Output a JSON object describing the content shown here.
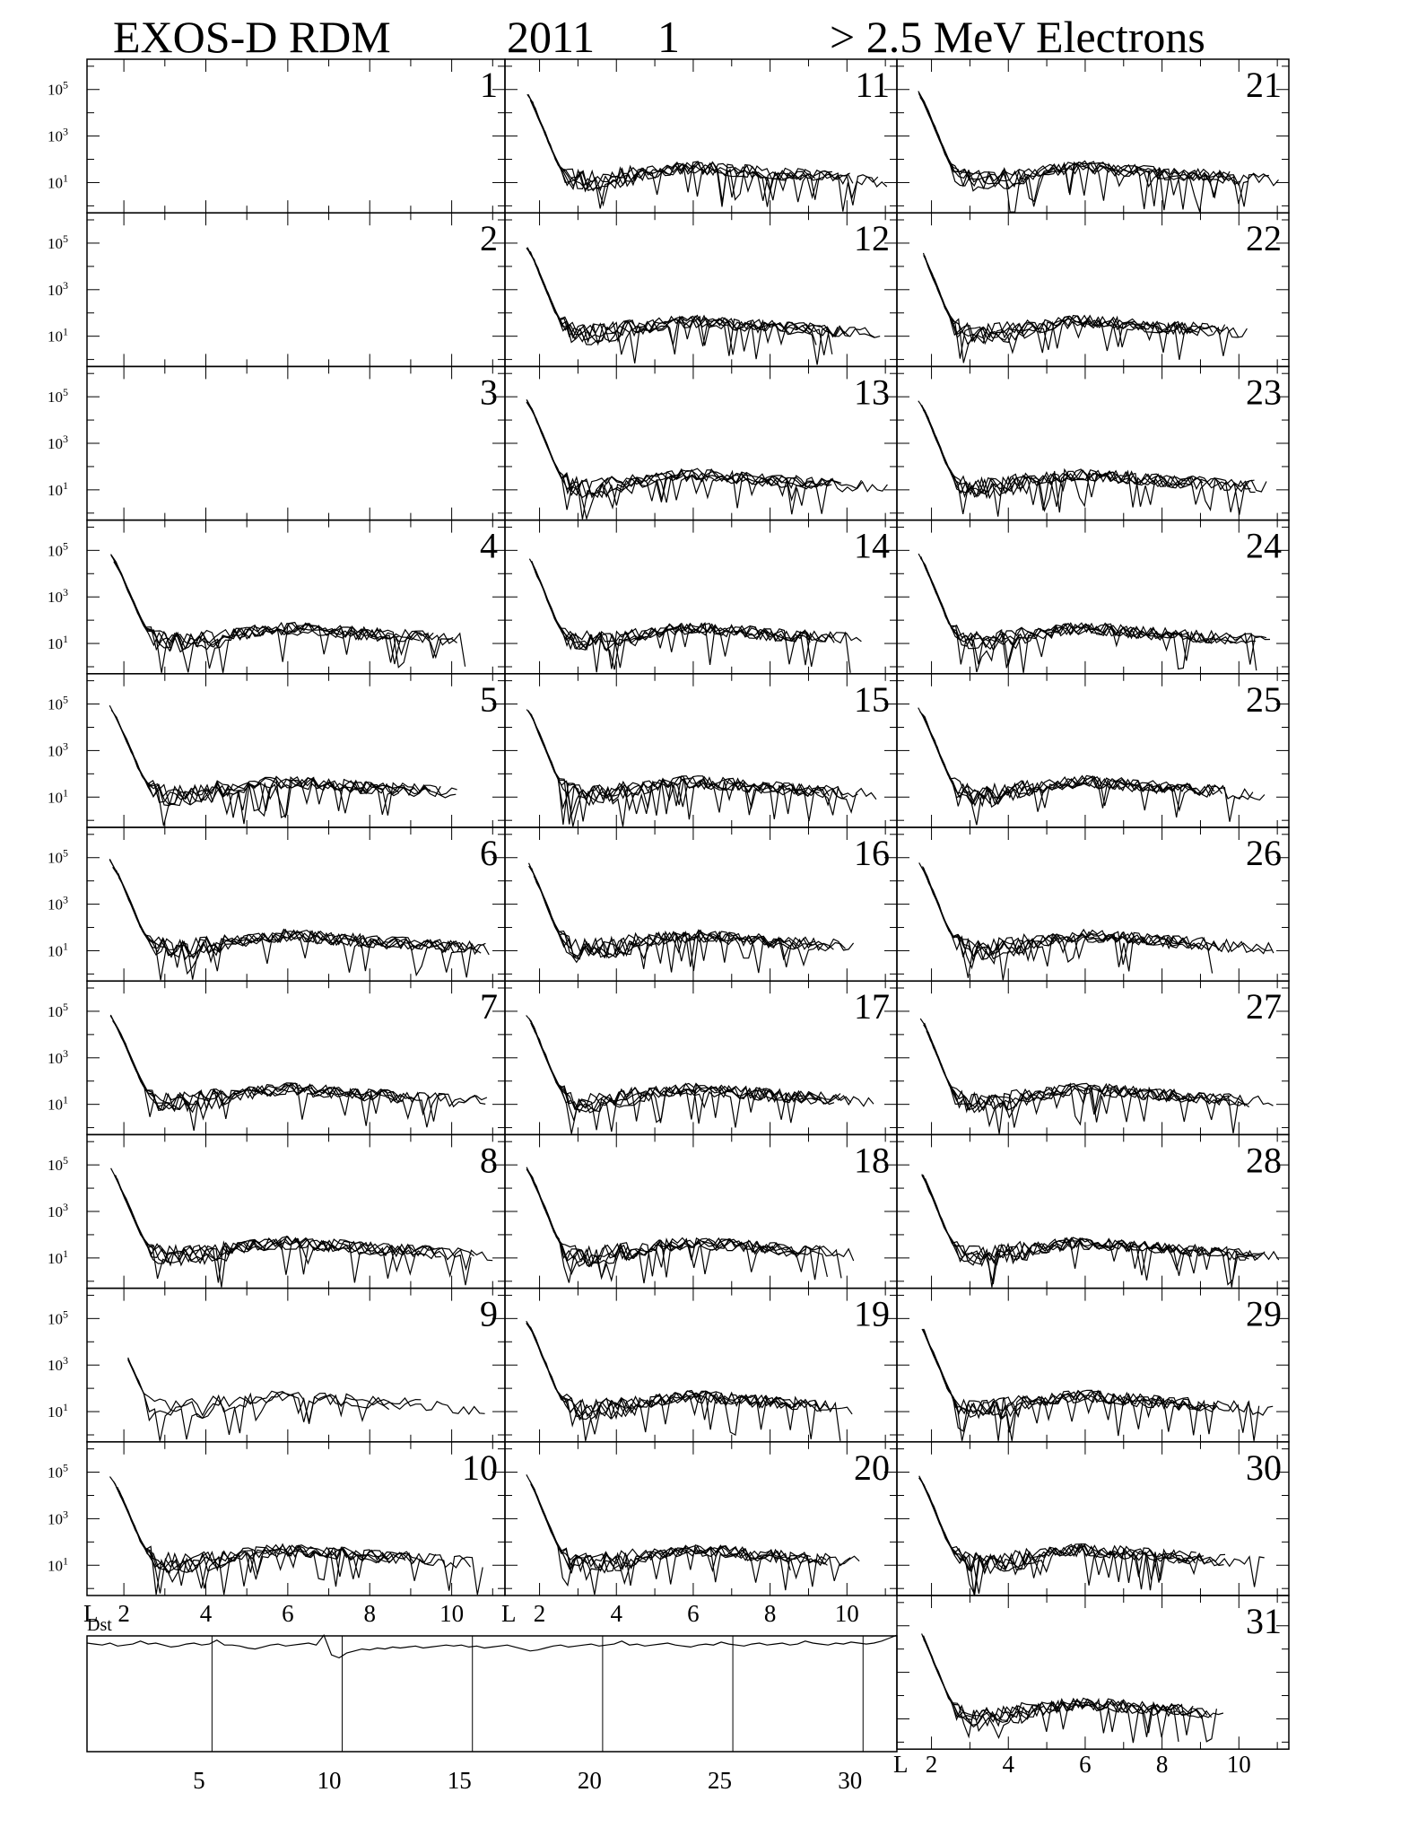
{
  "header": {
    "instrument": "EXOS-D RDM",
    "year": "2011",
    "month": "1",
    "species": "> 2.5  MeV Electrons"
  },
  "chart_data": {
    "type": "line",
    "panel_layout": {
      "columns": [
        [
          1,
          2,
          3,
          4,
          5,
          6,
          7,
          8,
          9,
          10
        ],
        [
          11,
          12,
          13,
          14,
          15,
          16,
          17,
          18,
          19,
          20
        ],
        [
          21,
          22,
          23,
          24,
          25,
          26,
          27,
          28,
          29,
          30,
          31
        ]
      ]
    },
    "yscale": "log",
    "ylim": [
      0.5,
      2000000
    ],
    "yticks": [
      {
        "base": "10",
        "exp": "5"
      },
      {
        "base": "10",
        "exp": "3"
      },
      {
        "base": "10",
        "exp": "1"
      }
    ],
    "xlim": [
      1.1,
      11.3
    ],
    "xlabel": "L",
    "xticks": [
      "2",
      "4",
      "6",
      "8",
      "10"
    ],
    "empty_days": [
      1,
      2,
      3
    ],
    "sparse_days": [
      9
    ],
    "profile": {
      "description_free": true,
      "L": [
        1.6,
        1.8,
        2.0,
        2.2,
        2.4,
        2.6,
        2.8,
        3.0,
        3.5,
        4.0,
        4.5,
        5.0,
        5.5,
        6.0,
        6.5,
        7.0,
        8.0,
        9.0,
        10.0,
        11.0
      ],
      "flux": [
        100000,
        30000,
        5000,
        800,
        120,
        30,
        15,
        12,
        12,
        15,
        20,
        30,
        40,
        45,
        40,
        35,
        25,
        20,
        15,
        12
      ]
    },
    "dst": {
      "label": "Dst",
      "xticks": [
        "5",
        "10",
        "15",
        "20",
        "25",
        "30"
      ],
      "xlim": [
        0.7,
        31.8
      ],
      "day_markers": [
        5.5,
        10.5,
        15.5,
        20.5,
        25.5,
        30.5
      ],
      "values": [
        0,
        -1,
        -2,
        0,
        -3,
        -2,
        -1,
        2,
        -1,
        0,
        -2,
        -4,
        -3,
        -1,
        0,
        -2,
        -1,
        3,
        -2,
        -2,
        -3,
        -5,
        -6,
        -4,
        -2,
        -1,
        -3,
        -2,
        -1,
        0,
        -2,
        8,
        -12,
        -15,
        -10,
        -8,
        -6,
        -7,
        -5,
        -6,
        -4,
        -5,
        -4,
        -3,
        -5,
        -4,
        -3,
        -2,
        -3,
        -2,
        -4,
        -3,
        -5,
        -4,
        -3,
        -2,
        -4,
        -6,
        -8,
        -7,
        -5,
        -3,
        -2,
        -4,
        -3,
        -2,
        -1,
        -3,
        -2,
        -1,
        2,
        -2,
        -1,
        -3,
        -2,
        -1,
        0,
        -2,
        -3,
        -4,
        -2,
        -1,
        -2,
        1,
        -1,
        -2,
        -3,
        -1,
        0,
        -2,
        -1,
        0,
        -2,
        -1,
        2,
        0,
        -1,
        -2,
        0,
        -1,
        1,
        0,
        -1,
        0,
        2,
        5,
        8
      ]
    }
  }
}
